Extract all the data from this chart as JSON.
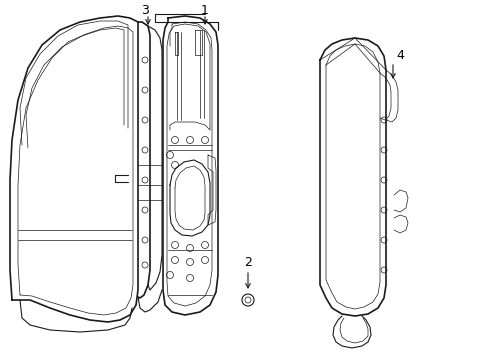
{
  "background_color": "#ffffff",
  "line_color": "#1a1a1a",
  "label_color": "#000000",
  "figsize": [
    4.9,
    3.6
  ],
  "dpi": 100,
  "lw_outer": 1.2,
  "lw_mid": 0.8,
  "lw_thin": 0.5,
  "lw_label": 0.8
}
